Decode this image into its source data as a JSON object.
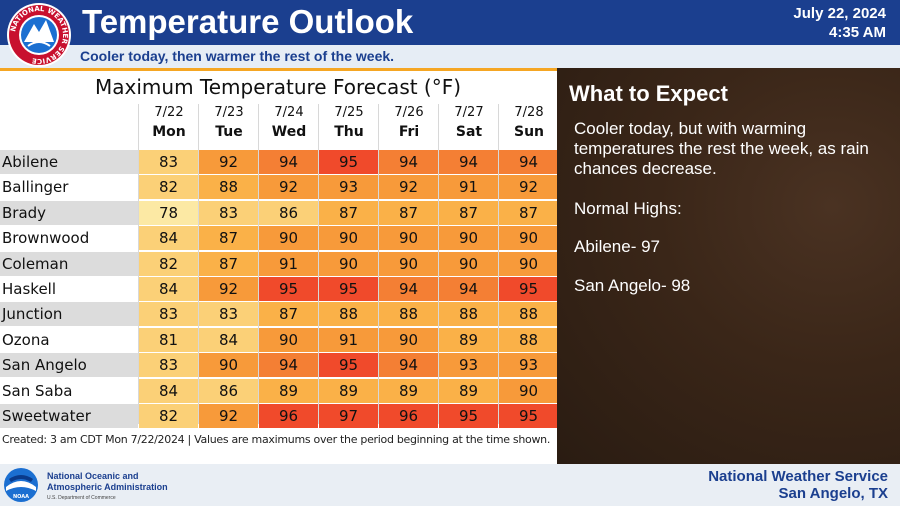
{
  "header": {
    "title": "Temperature Outlook",
    "date": "July 22, 2024",
    "time": "4:35 AM",
    "subtitle": "Cooler today,  then warmer the rest of the week.",
    "logo_text": "NATIONAL WEATHER SERVICE"
  },
  "table": {
    "title": "Maximum Temperature Forecast (°F)",
    "days": [
      {
        "date": "7/22",
        "weekday": "Mon"
      },
      {
        "date": "7/23",
        "weekday": "Tue"
      },
      {
        "date": "7/24",
        "weekday": "Wed"
      },
      {
        "date": "7/25",
        "weekday": "Thu"
      },
      {
        "date": "7/26",
        "weekday": "Fri"
      },
      {
        "date": "7/27",
        "weekday": "Sat"
      },
      {
        "date": "7/28",
        "weekday": "Sun"
      }
    ],
    "rows": [
      {
        "city": "Abilene",
        "values": [
          83,
          92,
          94,
          95,
          94,
          94,
          94
        ]
      },
      {
        "city": "Ballinger",
        "values": [
          82,
          88,
          92,
          93,
          92,
          91,
          92
        ]
      },
      {
        "city": "Brady",
        "values": [
          78,
          83,
          86,
          87,
          87,
          87,
          87
        ]
      },
      {
        "city": "Brownwood",
        "values": [
          84,
          87,
          90,
          90,
          90,
          90,
          90
        ]
      },
      {
        "city": "Coleman",
        "values": [
          82,
          87,
          91,
          90,
          90,
          90,
          90
        ]
      },
      {
        "city": "Haskell",
        "values": [
          84,
          92,
          95,
          95,
          94,
          94,
          95
        ]
      },
      {
        "city": "Junction",
        "values": [
          83,
          83,
          87,
          88,
          88,
          88,
          88
        ]
      },
      {
        "city": "Ozona",
        "values": [
          81,
          84,
          90,
          91,
          90,
          89,
          88
        ]
      },
      {
        "city": "San Angelo",
        "values": [
          83,
          90,
          94,
          95,
          94,
          93,
          93
        ]
      },
      {
        "city": "San Saba",
        "values": [
          84,
          86,
          89,
          89,
          89,
          89,
          90
        ]
      },
      {
        "city": "Sweetwater",
        "values": [
          82,
          92,
          96,
          97,
          96,
          95,
          95
        ]
      }
    ],
    "footnote": "Created: 3 am CDT Mon 7/22/2024  |  Values are maximums over the period beginning at the time shown."
  },
  "colors": {
    "78": "#fce9a4",
    "81": "#fbd077",
    "82": "#fbd077",
    "83": "#fbd077",
    "84": "#fbd077",
    "86": "#fbd077",
    "87": "#fab148",
    "88": "#fab148",
    "89": "#fab148",
    "90": "#f79a3a",
    "91": "#f79a3a",
    "92": "#f79a3a",
    "93": "#f79a3a",
    "94": "#f47f34",
    "95": "#f04a2b",
    "96": "#f04a2b",
    "97": "#f04a2b",
    "row_alt": "#dcdcdc"
  },
  "expect": {
    "title": "What to Expect",
    "text": "Cooler today, but with warming temperatures the rest the week, as rain chances decrease.",
    "normals_label": "Normal Highs:",
    "abilene": "Abilene- 97",
    "san_angelo": "San Angelo- 98"
  },
  "footer": {
    "noaa_line1": "National Oceanic and",
    "noaa_line2": "Atmospheric Administration",
    "noaa_dept": "U.S. Department of Commerce",
    "noaa_logo_text": "NOAA",
    "office_line1": "National Weather Service",
    "office_line2": "San Angelo, TX"
  }
}
